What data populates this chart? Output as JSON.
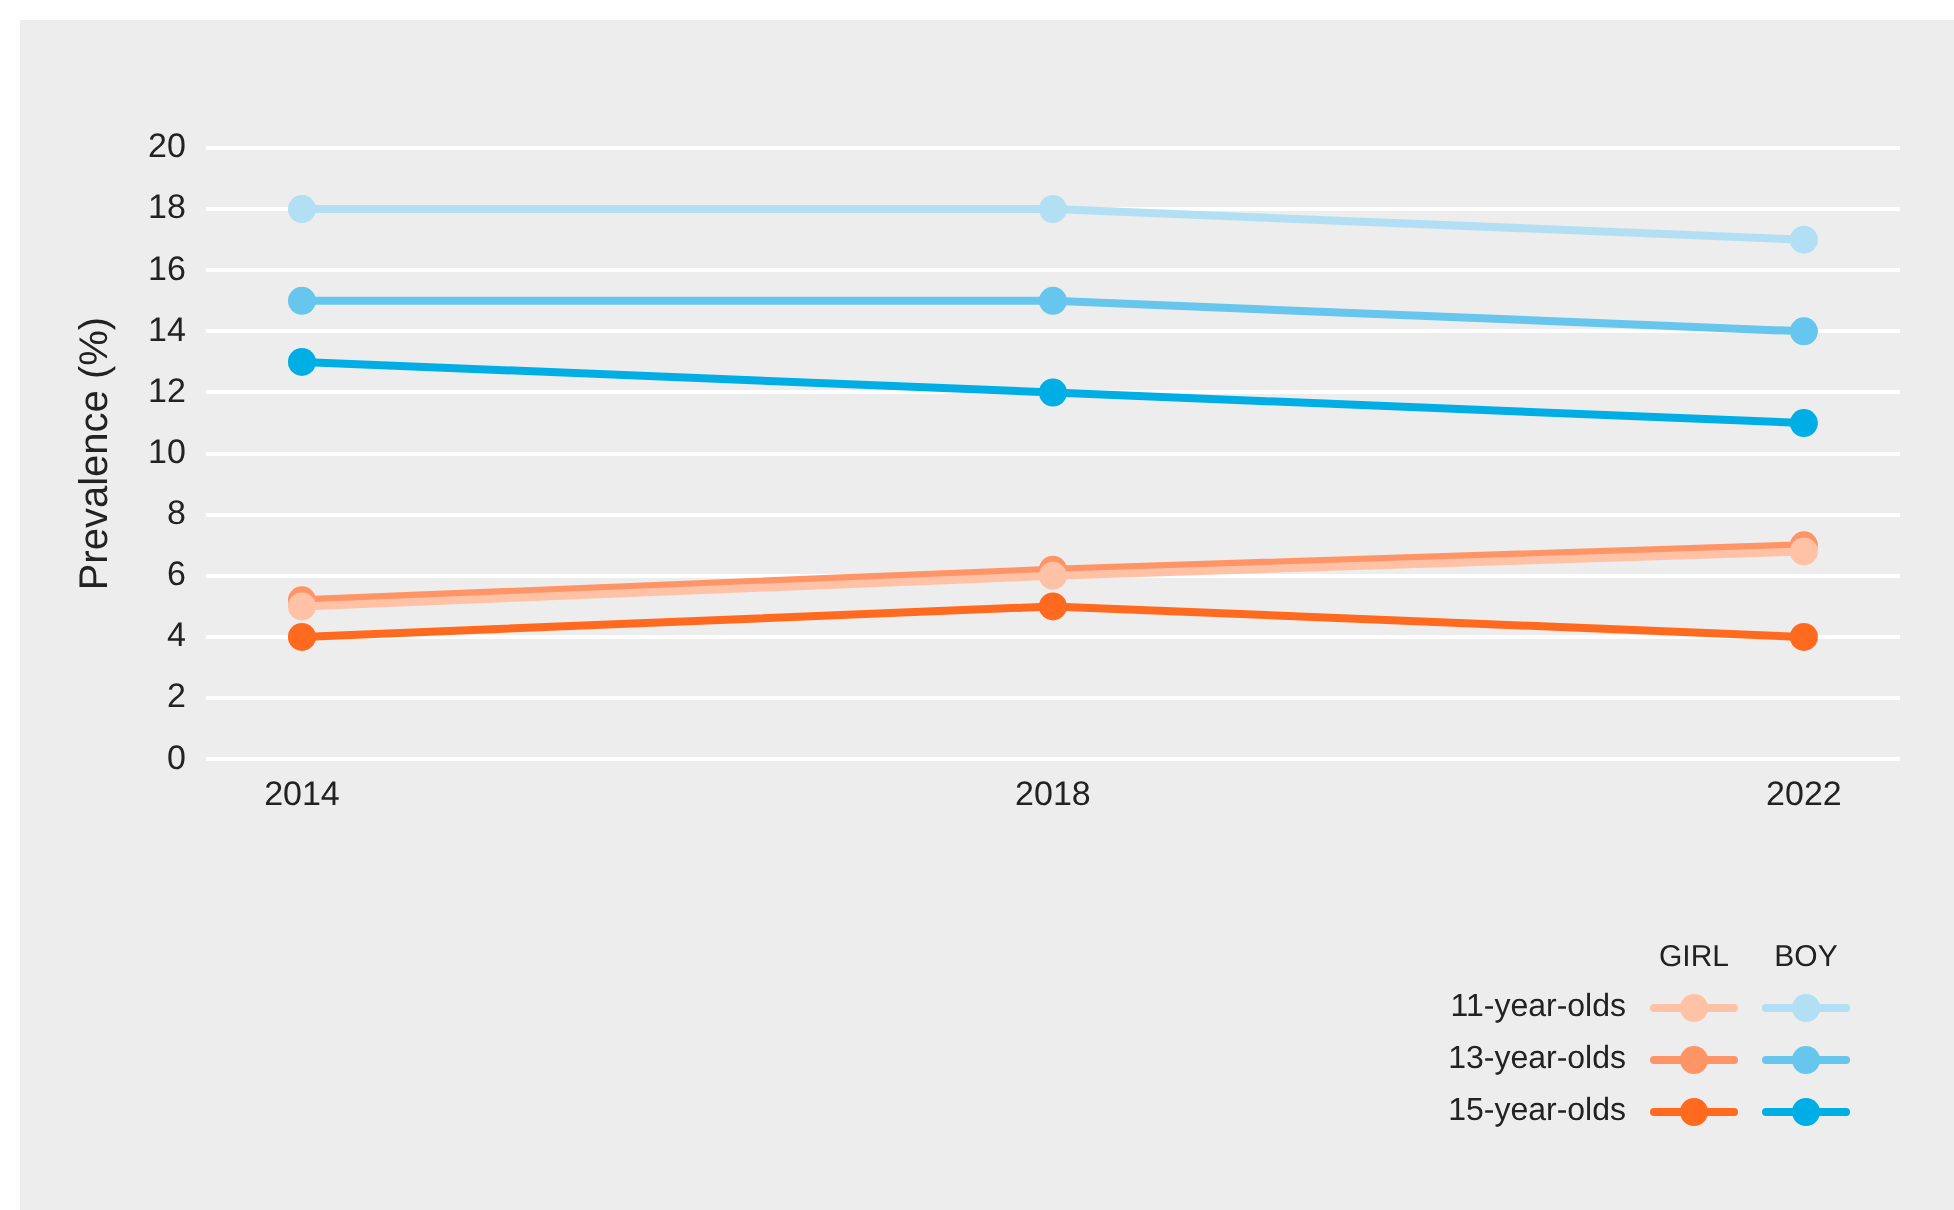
{
  "chart_data": {
    "type": "line",
    "ylabel": "Prevalence (%)",
    "categories": [
      "2014",
      "2018",
      "2022"
    ],
    "ylim": [
      0,
      20
    ],
    "yticks": [
      0,
      2,
      4,
      6,
      8,
      10,
      12,
      14,
      16,
      18,
      20
    ],
    "grid": "y",
    "legend": "bottom right",
    "marker": "circle",
    "line_style": "solid",
    "annotations": [
      "GIRL",
      "BOY"
    ],
    "series": [
      {
        "name": "11-year-olds",
        "color": "#ffc2a6",
        "values": [
          5.0,
          6.0,
          6.8
        ]
      },
      {
        "name": "13-year-olds",
        "color": "#ff9466",
        "values": [
          5.2,
          6.2,
          7.0
        ]
      },
      {
        "name": "15-year-olds",
        "color": "#ff6a1f",
        "values": [
          4,
          5,
          4
        ]
      },
      {
        "color": "#b3dff5",
        "values": [
          18,
          18,
          17
        ]
      },
      {
        "color": "#66c6ee",
        "values": [
          15,
          15,
          14
        ]
      },
      {
        "color": "#00aee6",
        "values": [
          13,
          12,
          11
        ]
      }
    ]
  }
}
